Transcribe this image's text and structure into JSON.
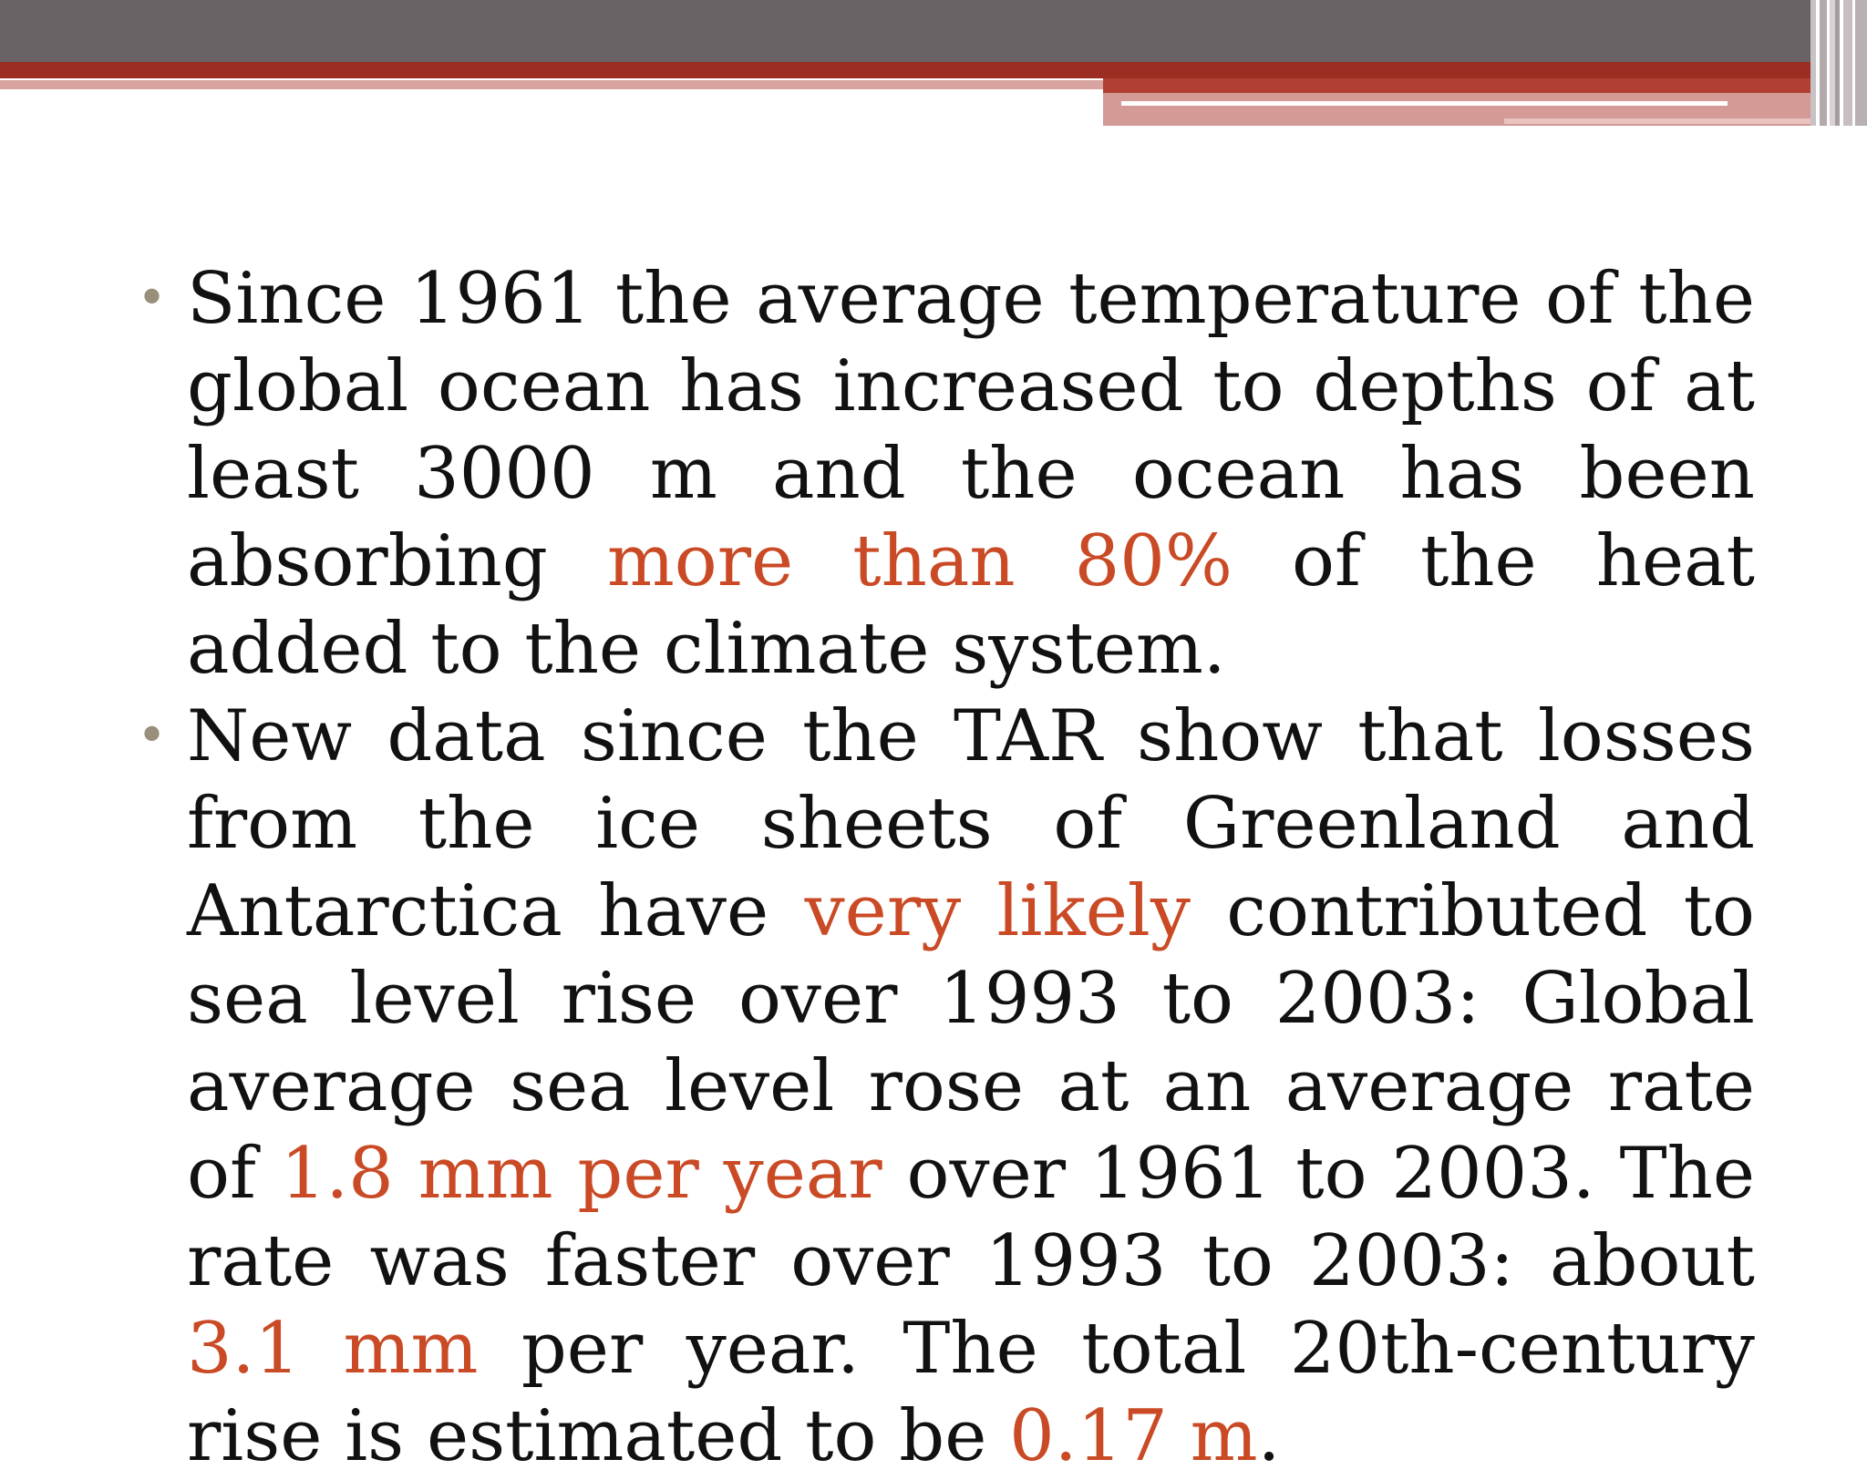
{
  "slide": {
    "bullets": [
      {
        "segments": [
          {
            "text": "Since 1961 the average temperature of the global ocean has increased to depths of at least 3000 m and the ocean has been absorbing ",
            "highlight": false
          },
          {
            "text": "more than 80%",
            "highlight": true
          },
          {
            "text": " of the heat added to the climate system.",
            "highlight": false
          }
        ]
      },
      {
        "segments": [
          {
            "text": "New data since the TAR show that losses from the ice sheets of Greenland and Antarctica have ",
            "highlight": false
          },
          {
            "text": "very likely",
            "highlight": true
          },
          {
            "text": " contributed to sea level rise over 1993 to 2003: Global average sea level rose at an average rate of ",
            "highlight": false
          },
          {
            "text": "1.8 mm per year",
            "highlight": true
          },
          {
            "text": " over 1961 to 2003. The rate was faster over 1993 to 2003: about ",
            "highlight": false
          },
          {
            "text": "3.1 mm",
            "highlight": true
          },
          {
            "text": " per year. The total 20th-century rise is estimated to be ",
            "highlight": false
          },
          {
            "text": "0.17 m",
            "highlight": true
          },
          {
            "text": ".",
            "highlight": false
          }
        ]
      }
    ],
    "bullet_glyph": "•"
  },
  "colors": {
    "highlight": "#c94a25",
    "text": "#111111",
    "bullet": "#9a8f7b",
    "header_gray": "#686264",
    "header_red": "#9b2d23"
  }
}
